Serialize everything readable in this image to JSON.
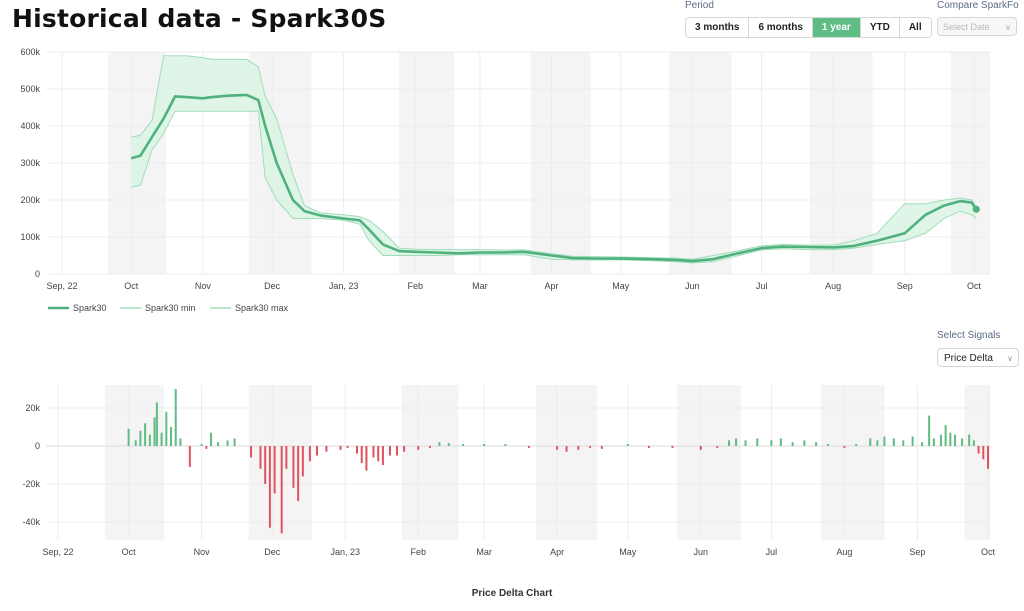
{
  "page": {
    "title": "Historical data - Spark30S",
    "bottom_chart_title": "Price Delta Chart"
  },
  "controls": {
    "period_label": "Period",
    "periods": [
      {
        "label": "3 months",
        "active": false
      },
      {
        "label": "6 months",
        "active": false
      },
      {
        "label": "1 year",
        "active": true
      },
      {
        "label": "YTD",
        "active": false
      },
      {
        "label": "All",
        "active": false
      }
    ],
    "compare_label": "Compare SparkFo",
    "compare_placeholder": "Select Date",
    "signals_label": "Select Signals",
    "signals_value": "Price Delta"
  },
  "colors": {
    "line": "#4fb27c",
    "band": "#d9f3e4",
    "band_edge": "#9fddba",
    "positive": "#5ebc84",
    "negative": "#e0525f",
    "shade": "#f4f4f4",
    "grid": "#ececec"
  },
  "chart_data": [
    {
      "type": "line",
      "x_ticks": [
        "Sep, 22",
        "Oct",
        "Nov",
        "Dec",
        "Jan, 23",
        "Feb",
        "Mar",
        "Apr",
        "May",
        "Jun",
        "Jul",
        "Aug",
        "Sep",
        "Oct"
      ],
      "y_ticks": [
        "0",
        "100k",
        "200k",
        "300k",
        "400k",
        "500k",
        "600k"
      ],
      "ylim": [
        0,
        600000
      ],
      "legend": [
        "Spark30",
        "Spark30 min",
        "Spark30 max"
      ],
      "series": [
        {
          "name": "Spark30",
          "points": [
            [
              "2022-10-01",
              313000
            ],
            [
              "2022-10-05",
              320000
            ],
            [
              "2022-10-10",
              370000
            ],
            [
              "2022-10-15",
              420000
            ],
            [
              "2022-10-20",
              480000
            ],
            [
              "2022-10-25",
              478000
            ],
            [
              "2022-11-01",
              475000
            ],
            [
              "2022-11-05",
              478000
            ],
            [
              "2022-11-12",
              482000
            ],
            [
              "2022-11-20",
              484000
            ],
            [
              "2022-11-25",
              470000
            ],
            [
              "2022-11-28",
              400000
            ],
            [
              "2022-12-03",
              300000
            ],
            [
              "2022-12-10",
              200000
            ],
            [
              "2022-12-15",
              170000
            ],
            [
              "2022-12-22",
              158000
            ],
            [
              "2023-01-01",
              150000
            ],
            [
              "2023-01-08",
              145000
            ],
            [
              "2023-01-12",
              120000
            ],
            [
              "2023-01-18",
              80000
            ],
            [
              "2023-01-25",
              62000
            ],
            [
              "2023-02-01",
              60000
            ],
            [
              "2023-02-10",
              58000
            ],
            [
              "2023-02-20",
              56000
            ],
            [
              "2023-03-01",
              58000
            ],
            [
              "2023-03-10",
              58000
            ],
            [
              "2023-03-20",
              60000
            ],
            [
              "2023-04-01",
              50000
            ],
            [
              "2023-04-10",
              43000
            ],
            [
              "2023-04-20",
              42000
            ],
            [
              "2023-05-01",
              42000
            ],
            [
              "2023-05-15",
              40000
            ],
            [
              "2023-05-25",
              38000
            ],
            [
              "2023-06-01",
              35000
            ],
            [
              "2023-06-10",
              40000
            ],
            [
              "2023-06-20",
              55000
            ],
            [
              "2023-07-01",
              70000
            ],
            [
              "2023-07-10",
              74000
            ],
            [
              "2023-07-20",
              73000
            ],
            [
              "2023-08-01",
              72000
            ],
            [
              "2023-08-10",
              76000
            ],
            [
              "2023-08-20",
              90000
            ],
            [
              "2023-09-01",
              110000
            ],
            [
              "2023-09-10",
              160000
            ],
            [
              "2023-09-18",
              185000
            ],
            [
              "2023-09-25",
              197000
            ],
            [
              "2023-09-30",
              193000
            ],
            [
              "2023-10-02",
              175000
            ]
          ]
        },
        {
          "name": "Spark30 min",
          "points": [
            [
              "2022-10-01",
              235000
            ],
            [
              "2022-10-05",
              240000
            ],
            [
              "2022-10-10",
              335000
            ],
            [
              "2022-10-15",
              380000
            ],
            [
              "2022-10-20",
              440000
            ],
            [
              "2022-10-25",
              440000
            ],
            [
              "2022-11-01",
              440000
            ],
            [
              "2022-11-05",
              440000
            ],
            [
              "2022-11-12",
              440000
            ],
            [
              "2022-11-20",
              440000
            ],
            [
              "2022-11-25",
              440000
            ],
            [
              "2022-11-28",
              260000
            ],
            [
              "2022-12-03",
              200000
            ],
            [
              "2022-12-10",
              150000
            ],
            [
              "2022-12-15",
              150000
            ],
            [
              "2022-12-22",
              150000
            ],
            [
              "2023-01-01",
              145000
            ],
            [
              "2023-01-08",
              135000
            ],
            [
              "2023-01-12",
              90000
            ],
            [
              "2023-01-18",
              50000
            ],
            [
              "2023-01-25",
              50000
            ],
            [
              "2023-02-01",
              50000
            ],
            [
              "2023-02-10",
              50000
            ],
            [
              "2023-02-20",
              52000
            ],
            [
              "2023-03-01",
              52000
            ],
            [
              "2023-03-10",
              52000
            ],
            [
              "2023-03-20",
              52000
            ],
            [
              "2023-04-01",
              40000
            ],
            [
              "2023-04-10",
              38000
            ],
            [
              "2023-04-20",
              38000
            ],
            [
              "2023-05-01",
              38000
            ],
            [
              "2023-05-15",
              36000
            ],
            [
              "2023-05-25",
              33000
            ],
            [
              "2023-06-01",
              30000
            ],
            [
              "2023-06-10",
              33000
            ],
            [
              "2023-06-20",
              48000
            ],
            [
              "2023-07-01",
              65000
            ],
            [
              "2023-07-10",
              68000
            ],
            [
              "2023-07-20",
              66000
            ],
            [
              "2023-08-01",
              66000
            ],
            [
              "2023-08-10",
              70000
            ],
            [
              "2023-08-20",
              80000
            ],
            [
              "2023-09-01",
              90000
            ],
            [
              "2023-09-10",
              110000
            ],
            [
              "2023-09-18",
              150000
            ],
            [
              "2023-09-25",
              170000
            ],
            [
              "2023-09-30",
              160000
            ],
            [
              "2023-10-02",
              150000
            ]
          ]
        },
        {
          "name": "Spark30 max",
          "points": [
            [
              "2022-10-01",
              370000
            ],
            [
              "2022-10-05",
              375000
            ],
            [
              "2022-10-10",
              415000
            ],
            [
              "2022-10-15",
              590000
            ],
            [
              "2022-10-20",
              590000
            ],
            [
              "2022-10-25",
              590000
            ],
            [
              "2022-11-01",
              585000
            ],
            [
              "2022-11-05",
              580000
            ],
            [
              "2022-11-12",
              580000
            ],
            [
              "2022-11-20",
              580000
            ],
            [
              "2022-11-25",
              560000
            ],
            [
              "2022-11-28",
              480000
            ],
            [
              "2022-12-03",
              420000
            ],
            [
              "2022-12-10",
              270000
            ],
            [
              "2022-12-15",
              185000
            ],
            [
              "2022-12-22",
              165000
            ],
            [
              "2023-01-01",
              160000
            ],
            [
              "2023-01-08",
              155000
            ],
            [
              "2023-01-12",
              145000
            ],
            [
              "2023-01-18",
              115000
            ],
            [
              "2023-01-25",
              70000
            ],
            [
              "2023-02-01",
              67000
            ],
            [
              "2023-02-10",
              66000
            ],
            [
              "2023-02-20",
              66000
            ],
            [
              "2023-03-01",
              66000
            ],
            [
              "2023-03-10",
              65000
            ],
            [
              "2023-03-20",
              65000
            ],
            [
              "2023-04-01",
              55000
            ],
            [
              "2023-04-10",
              48000
            ],
            [
              "2023-04-20",
              47000
            ],
            [
              "2023-05-01",
              46000
            ],
            [
              "2023-05-15",
              44000
            ],
            [
              "2023-05-25",
              43000
            ],
            [
              "2023-06-01",
              40000
            ],
            [
              "2023-06-10",
              50000
            ],
            [
              "2023-06-20",
              62000
            ],
            [
              "2023-07-01",
              76000
            ],
            [
              "2023-07-10",
              80000
            ],
            [
              "2023-07-20",
              78000
            ],
            [
              "2023-08-01",
              78000
            ],
            [
              "2023-08-10",
              90000
            ],
            [
              "2023-08-20",
              110000
            ],
            [
              "2023-09-01",
              190000
            ],
            [
              "2023-09-10",
              190000
            ],
            [
              "2023-09-18",
              200000
            ],
            [
              "2023-09-25",
              205000
            ],
            [
              "2023-09-30",
              200000
            ],
            [
              "2023-10-02",
              180000
            ]
          ]
        }
      ]
    },
    {
      "type": "bar",
      "x_ticks": [
        "Sep, 22",
        "Oct",
        "Nov",
        "Dec",
        "Jan, 23",
        "Feb",
        "Mar",
        "Apr",
        "May",
        "Jun",
        "Jul",
        "Aug",
        "Sep",
        "Oct"
      ],
      "y_ticks": [
        "-40k",
        "-20k",
        "0",
        "20k"
      ],
      "ylim": [
        -50000,
        30000
      ],
      "bars": [
        [
          "2022-10-01",
          9000
        ],
        [
          "2022-10-04",
          3000
        ],
        [
          "2022-10-06",
          8000
        ],
        [
          "2022-10-08",
          12000
        ],
        [
          "2022-10-10",
          6000
        ],
        [
          "2022-10-12",
          15000
        ],
        [
          "2022-10-13",
          23000
        ],
        [
          "2022-10-15",
          7000
        ],
        [
          "2022-10-17",
          18000
        ],
        [
          "2022-10-19",
          10000
        ],
        [
          "2022-10-21",
          30000
        ],
        [
          "2022-10-23",
          4000
        ],
        [
          "2022-10-27",
          -11000
        ],
        [
          "2022-11-01",
          1000
        ],
        [
          "2022-11-03",
          -1500
        ],
        [
          "2022-11-05",
          7000
        ],
        [
          "2022-11-08",
          2000
        ],
        [
          "2022-11-12",
          3000
        ],
        [
          "2022-11-15",
          4000
        ],
        [
          "2022-11-22",
          -6000
        ],
        [
          "2022-11-26",
          -12000
        ],
        [
          "2022-11-28",
          -20000
        ],
        [
          "2022-11-30",
          -43000
        ],
        [
          "2022-12-02",
          -25000
        ],
        [
          "2022-12-05",
          -46000
        ],
        [
          "2022-12-07",
          -12000
        ],
        [
          "2022-12-10",
          -22000
        ],
        [
          "2022-12-12",
          -29000
        ],
        [
          "2022-12-14",
          -16000
        ],
        [
          "2022-12-17",
          -8000
        ],
        [
          "2022-12-20",
          -5000
        ],
        [
          "2022-12-24",
          -3000
        ],
        [
          "2022-12-30",
          -2000
        ],
        [
          "2023-01-02",
          -1000
        ],
        [
          "2023-01-06",
          -4000
        ],
        [
          "2023-01-08",
          -9000
        ],
        [
          "2023-01-10",
          -13000
        ],
        [
          "2023-01-13",
          -6000
        ],
        [
          "2023-01-15",
          -8000
        ],
        [
          "2023-01-17",
          -10000
        ],
        [
          "2023-01-20",
          -5000
        ],
        [
          "2023-01-23",
          -5000
        ],
        [
          "2023-01-26",
          -3000
        ],
        [
          "2023-02-01",
          -2000
        ],
        [
          "2023-02-06",
          -1000
        ],
        [
          "2023-02-10",
          2000
        ],
        [
          "2023-02-14",
          1500
        ],
        [
          "2023-02-20",
          1000
        ],
        [
          "2023-03-01",
          1000
        ],
        [
          "2023-03-10",
          1000
        ],
        [
          "2023-03-20",
          -1000
        ],
        [
          "2023-04-01",
          -2000
        ],
        [
          "2023-04-05",
          -3000
        ],
        [
          "2023-04-10",
          -2000
        ],
        [
          "2023-04-15",
          -1000
        ],
        [
          "2023-04-20",
          -1500
        ],
        [
          "2023-05-01",
          1000
        ],
        [
          "2023-05-10",
          -1000
        ],
        [
          "2023-05-20",
          -1000
        ],
        [
          "2023-06-01",
          -2000
        ],
        [
          "2023-06-08",
          -1000
        ],
        [
          "2023-06-13",
          3000
        ],
        [
          "2023-06-16",
          4000
        ],
        [
          "2023-06-20",
          3000
        ],
        [
          "2023-06-25",
          4000
        ],
        [
          "2023-07-01",
          3000
        ],
        [
          "2023-07-05",
          4000
        ],
        [
          "2023-07-10",
          2000
        ],
        [
          "2023-07-15",
          3000
        ],
        [
          "2023-07-20",
          2000
        ],
        [
          "2023-07-25",
          1000
        ],
        [
          "2023-08-01",
          -1000
        ],
        [
          "2023-08-06",
          1000
        ],
        [
          "2023-08-12",
          4000
        ],
        [
          "2023-08-15",
          3000
        ],
        [
          "2023-08-18",
          5000
        ],
        [
          "2023-08-22",
          4000
        ],
        [
          "2023-08-26",
          3000
        ],
        [
          "2023-08-30",
          5000
        ],
        [
          "2023-09-03",
          2000
        ],
        [
          "2023-09-06",
          16000
        ],
        [
          "2023-09-08",
          4000
        ],
        [
          "2023-09-11",
          6000
        ],
        [
          "2023-09-13",
          11000
        ],
        [
          "2023-09-15",
          7000
        ],
        [
          "2023-09-17",
          6000
        ],
        [
          "2023-09-20",
          4000
        ],
        [
          "2023-09-23",
          6000
        ],
        [
          "2023-09-25",
          3000
        ],
        [
          "2023-09-27",
          -4000
        ],
        [
          "2023-09-29",
          -7000
        ],
        [
          "2023-10-01",
          -12000
        ]
      ]
    }
  ]
}
